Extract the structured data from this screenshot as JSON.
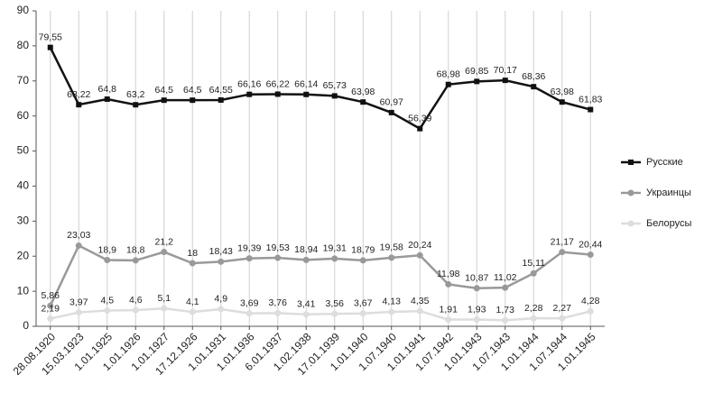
{
  "chart_data": {
    "type": "line",
    "categories": [
      "28.08.1920",
      "15.03.1923",
      "1.01.1925",
      "1.01.1926",
      "1.01.1927",
      "17.12.1926",
      "1.01.1931",
      "1.01.1936",
      "6.01.1937",
      "1.02.1938",
      "17.01.1939",
      "1.01.1940",
      "1.07.1940",
      "1.01.1941",
      "1.07.1942",
      "1.01.1943",
      "1.07.1943",
      "1.01.1944",
      "1.07.1944",
      "1.01.1945"
    ],
    "series": [
      {
        "name": "Русские",
        "color": "#111111",
        "marker": "square",
        "values": [
          79.55,
          63.22,
          64.8,
          63.2,
          64.5,
          64.5,
          64.55,
          66.16,
          66.22,
          66.14,
          65.73,
          63.98,
          60.97,
          56.39,
          68.98,
          69.85,
          70.17,
          68.36,
          63.98,
          61.83
        ],
        "value_labels": [
          "79,55",
          "63,22",
          "64,8",
          "63,2",
          "64,5",
          "64,5",
          "64,55",
          "66,16",
          "66,22",
          "66,14",
          "65,73",
          "63,98",
          "60,97",
          "56,39",
          "68,98",
          "69,85",
          "70,17",
          "68,36",
          "63,98",
          "61,83"
        ]
      },
      {
        "name": "Украинцы",
        "color": "#999999",
        "marker": "circle",
        "values": [
          5.86,
          23.03,
          18.9,
          18.8,
          21.2,
          18,
          18.43,
          19.39,
          19.53,
          18.94,
          19.31,
          18.79,
          19.58,
          20.24,
          11.98,
          10.87,
          11.02,
          15.11,
          21.17,
          20.44
        ],
        "value_labels": [
          "5,86",
          "23,03",
          "18,9",
          "18,8",
          "21,2",
          "18",
          "18,43",
          "19,39",
          "19,53",
          "18,94",
          "19,31",
          "18,79",
          "19,58",
          "20,24",
          "11,98",
          "10,87",
          "11,02",
          "15,11",
          "21,17",
          "20,44"
        ]
      },
      {
        "name": "Белорусы",
        "color": "#dddddd",
        "marker": "circle",
        "values": [
          2.19,
          3.97,
          4.5,
          4.6,
          5.1,
          4.1,
          4.9,
          3.69,
          3.76,
          3.41,
          3.56,
          3.67,
          4.13,
          4.35,
          1.91,
          1.93,
          1.73,
          2.28,
          2.27,
          4.28
        ],
        "value_labels": [
          "2,19",
          "3,97",
          "4,5",
          "4,6",
          "5,1",
          "4,1",
          "4,9",
          "3,69",
          "3,76",
          "3,41",
          "3,56",
          "3,67",
          "4,13",
          "4,35",
          "1,91",
          "1,93",
          "1,73",
          "2,28",
          "2,27",
          "4,28"
        ]
      }
    ],
    "ylim": [
      0,
      90
    ],
    "yticks": [
      0,
      10,
      20,
      30,
      40,
      50,
      60,
      70,
      80,
      90
    ],
    "grid": true,
    "legend": "right"
  }
}
